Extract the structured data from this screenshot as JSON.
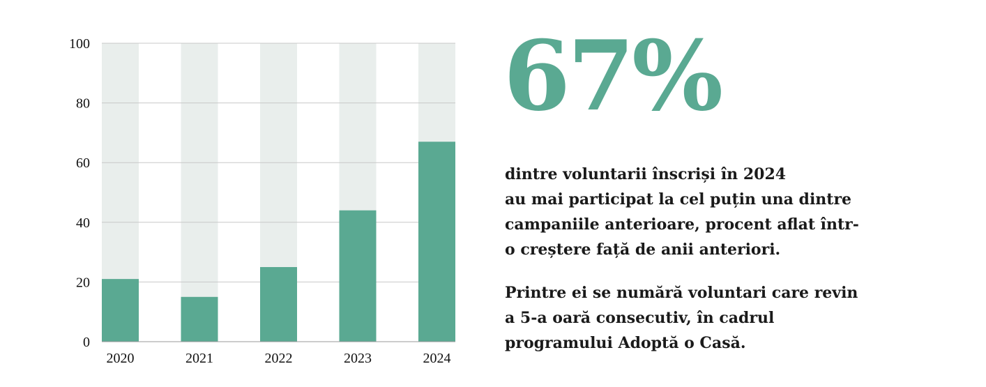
{
  "colors": {
    "bar": "#5aa992",
    "background_bar": "#e9eeec",
    "grid": "#c8c8c8",
    "text": "#1a1a1a"
  },
  "chart_data": {
    "type": "bar",
    "categories": [
      "2020",
      "2021",
      "2022",
      "2023",
      "2024"
    ],
    "values": [
      21,
      15,
      25,
      44,
      67
    ],
    "ylim": [
      0,
      100
    ],
    "yticks": [
      "0",
      "20",
      "40",
      "60",
      "80",
      "100"
    ],
    "title": "",
    "xlabel": "",
    "ylabel": "",
    "grid": true,
    "background_bars_to": 100
  },
  "highlight": {
    "value": "67%"
  },
  "paragraph1": [
    "dintre voluntarii înscriși în 2024",
    "au mai participat la cel puțin una dintre",
    "campaniile anterioare, procent aflat într-",
    "o creștere față de anii anteriori."
  ],
  "paragraph2": [
    "Printre ei se numără voluntari care revin",
    "a 5-a oară consecutiv, în cadrul",
    "programului Adoptă o Casă."
  ]
}
